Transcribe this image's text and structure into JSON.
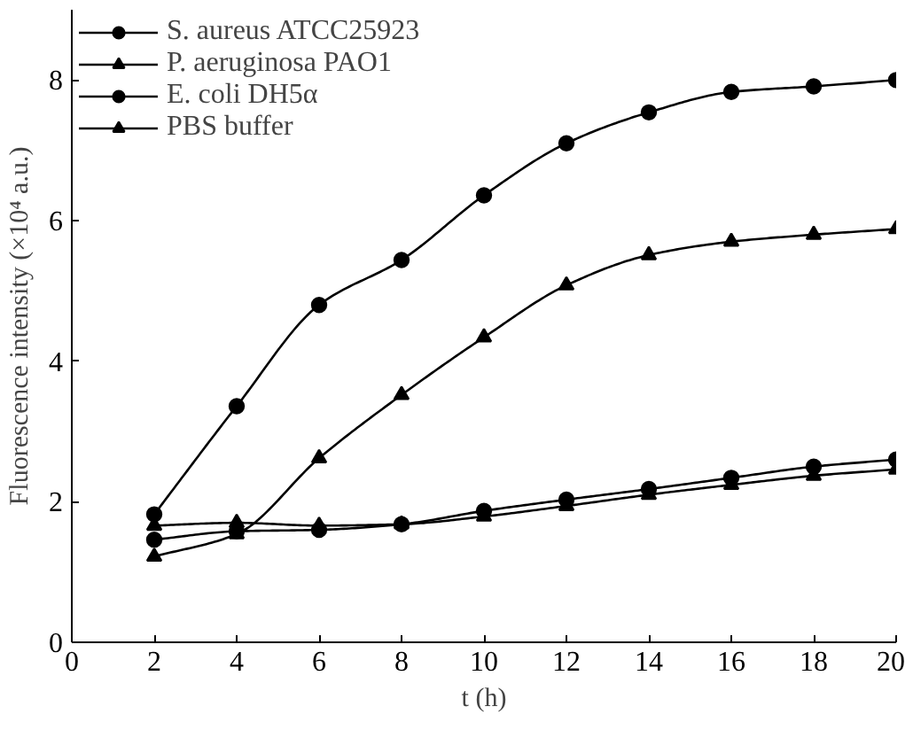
{
  "chart_data": {
    "type": "line",
    "xlabel": "t (h)",
    "ylabel": "Fluorescence intensity (×10⁴ a.u.)",
    "x": [
      2,
      4,
      6,
      8,
      10,
      12,
      14,
      16,
      18,
      20
    ],
    "xlim": [
      0,
      20
    ],
    "xticks": [
      0,
      2,
      4,
      6,
      8,
      10,
      12,
      14,
      16,
      18,
      20
    ],
    "ylim": [
      0,
      9
    ],
    "yticks": [
      0,
      2,
      4,
      6,
      8
    ],
    "grid": false,
    "legend": "top left",
    "line_style": "solid",
    "series": [
      {
        "name": "S. aureus ATCC25923",
        "color": "#000000",
        "marker": "circle",
        "values": [
          1.82,
          3.36,
          4.8,
          5.44,
          6.36,
          7.1,
          7.54,
          7.83,
          7.91,
          8.0
        ]
      },
      {
        "name": "P. aeruginosa PAO1",
        "color": "#000000",
        "marker": "triangle",
        "values": [
          1.22,
          1.54,
          2.62,
          3.52,
          4.34,
          5.08,
          5.51,
          5.7,
          5.8,
          5.88
        ]
      },
      {
        "name": "E. coli DH5α",
        "color": "#000000",
        "marker": "circle",
        "values": [
          1.46,
          1.58,
          1.6,
          1.68,
          1.87,
          2.03,
          2.18,
          2.34,
          2.5,
          2.6
        ]
      },
      {
        "name": "PBS buffer",
        "color": "#000000",
        "marker": "triangle",
        "values": [
          1.66,
          1.7,
          1.66,
          1.68,
          1.79,
          1.94,
          2.1,
          2.24,
          2.37,
          2.46
        ]
      }
    ]
  }
}
